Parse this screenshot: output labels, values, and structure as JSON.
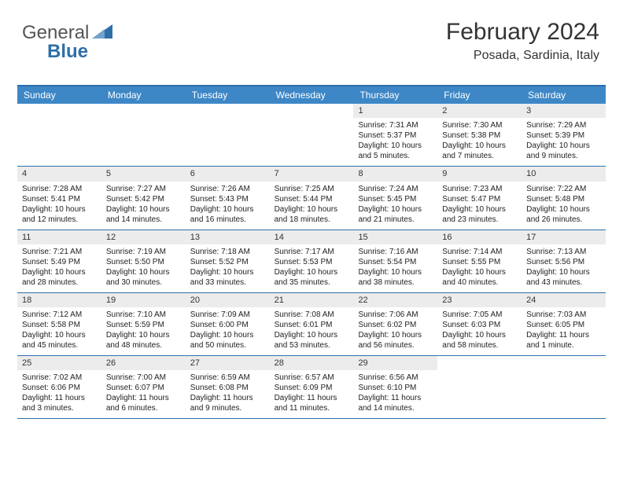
{
  "brand": {
    "part1": "General",
    "part2": "Blue"
  },
  "title": "February 2024",
  "subtitle": "Posada, Sardinia, Italy",
  "colors": {
    "header_bg": "#3d87c7",
    "border": "#2f6fa8",
    "daynum_bg": "#ececec",
    "text": "#222222",
    "title": "#333333"
  },
  "fontsize": {
    "title": 30,
    "subtitle": 16,
    "dayhead": 12,
    "cell": 10
  },
  "dayNames": [
    "Sunday",
    "Monday",
    "Tuesday",
    "Wednesday",
    "Thursday",
    "Friday",
    "Saturday"
  ],
  "startWeekday": 4,
  "days": [
    {
      "n": "1",
      "sunrise": "7:31 AM",
      "sunset": "5:37 PM",
      "daylight": "10 hours and 5 minutes."
    },
    {
      "n": "2",
      "sunrise": "7:30 AM",
      "sunset": "5:38 PM",
      "daylight": "10 hours and 7 minutes."
    },
    {
      "n": "3",
      "sunrise": "7:29 AM",
      "sunset": "5:39 PM",
      "daylight": "10 hours and 9 minutes."
    },
    {
      "n": "4",
      "sunrise": "7:28 AM",
      "sunset": "5:41 PM",
      "daylight": "10 hours and 12 minutes."
    },
    {
      "n": "5",
      "sunrise": "7:27 AM",
      "sunset": "5:42 PM",
      "daylight": "10 hours and 14 minutes."
    },
    {
      "n": "6",
      "sunrise": "7:26 AM",
      "sunset": "5:43 PM",
      "daylight": "10 hours and 16 minutes."
    },
    {
      "n": "7",
      "sunrise": "7:25 AM",
      "sunset": "5:44 PM",
      "daylight": "10 hours and 18 minutes."
    },
    {
      "n": "8",
      "sunrise": "7:24 AM",
      "sunset": "5:45 PM",
      "daylight": "10 hours and 21 minutes."
    },
    {
      "n": "9",
      "sunrise": "7:23 AM",
      "sunset": "5:47 PM",
      "daylight": "10 hours and 23 minutes."
    },
    {
      "n": "10",
      "sunrise": "7:22 AM",
      "sunset": "5:48 PM",
      "daylight": "10 hours and 26 minutes."
    },
    {
      "n": "11",
      "sunrise": "7:21 AM",
      "sunset": "5:49 PM",
      "daylight": "10 hours and 28 minutes."
    },
    {
      "n": "12",
      "sunrise": "7:19 AM",
      "sunset": "5:50 PM",
      "daylight": "10 hours and 30 minutes."
    },
    {
      "n": "13",
      "sunrise": "7:18 AM",
      "sunset": "5:52 PM",
      "daylight": "10 hours and 33 minutes."
    },
    {
      "n": "14",
      "sunrise": "7:17 AM",
      "sunset": "5:53 PM",
      "daylight": "10 hours and 35 minutes."
    },
    {
      "n": "15",
      "sunrise": "7:16 AM",
      "sunset": "5:54 PM",
      "daylight": "10 hours and 38 minutes."
    },
    {
      "n": "16",
      "sunrise": "7:14 AM",
      "sunset": "5:55 PM",
      "daylight": "10 hours and 40 minutes."
    },
    {
      "n": "17",
      "sunrise": "7:13 AM",
      "sunset": "5:56 PM",
      "daylight": "10 hours and 43 minutes."
    },
    {
      "n": "18",
      "sunrise": "7:12 AM",
      "sunset": "5:58 PM",
      "daylight": "10 hours and 45 minutes."
    },
    {
      "n": "19",
      "sunrise": "7:10 AM",
      "sunset": "5:59 PM",
      "daylight": "10 hours and 48 minutes."
    },
    {
      "n": "20",
      "sunrise": "7:09 AM",
      "sunset": "6:00 PM",
      "daylight": "10 hours and 50 minutes."
    },
    {
      "n": "21",
      "sunrise": "7:08 AM",
      "sunset": "6:01 PM",
      "daylight": "10 hours and 53 minutes."
    },
    {
      "n": "22",
      "sunrise": "7:06 AM",
      "sunset": "6:02 PM",
      "daylight": "10 hours and 56 minutes."
    },
    {
      "n": "23",
      "sunrise": "7:05 AM",
      "sunset": "6:03 PM",
      "daylight": "10 hours and 58 minutes."
    },
    {
      "n": "24",
      "sunrise": "7:03 AM",
      "sunset": "6:05 PM",
      "daylight": "11 hours and 1 minute."
    },
    {
      "n": "25",
      "sunrise": "7:02 AM",
      "sunset": "6:06 PM",
      "daylight": "11 hours and 3 minutes."
    },
    {
      "n": "26",
      "sunrise": "7:00 AM",
      "sunset": "6:07 PM",
      "daylight": "11 hours and 6 minutes."
    },
    {
      "n": "27",
      "sunrise": "6:59 AM",
      "sunset": "6:08 PM",
      "daylight": "11 hours and 9 minutes."
    },
    {
      "n": "28",
      "sunrise": "6:57 AM",
      "sunset": "6:09 PM",
      "daylight": "11 hours and 11 minutes."
    },
    {
      "n": "29",
      "sunrise": "6:56 AM",
      "sunset": "6:10 PM",
      "daylight": "11 hours and 14 minutes."
    }
  ],
  "labels": {
    "sunrise": "Sunrise: ",
    "sunset": "Sunset: ",
    "daylight": "Daylight: "
  }
}
